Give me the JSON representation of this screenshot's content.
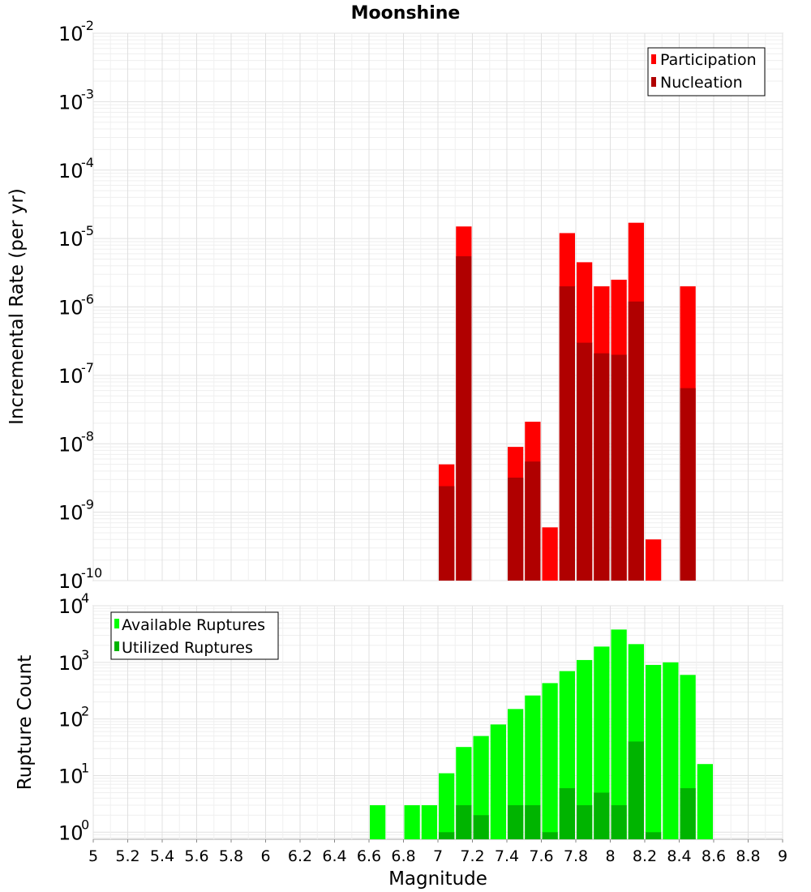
{
  "chart_data": [
    {
      "type": "bar",
      "title": "Moonshine",
      "xlabel": "",
      "ylabel": "Incremental Rate (per yr)",
      "y_scale": "log",
      "ylim": [
        1e-10,
        0.01
      ],
      "xlim": [
        5,
        9
      ],
      "y_tick_exponents": [
        "-10",
        "-9",
        "-8",
        "-7",
        "-6",
        "-5",
        "-4",
        "-3",
        "-2"
      ],
      "legend_position": "top-right",
      "x": [
        7.05,
        7.15,
        7.45,
        7.55,
        7.65,
        7.75,
        7.85,
        7.95,
        8.05,
        8.15,
        8.25,
        8.45
      ],
      "series": [
        {
          "name": "Participation",
          "color": "#ff0000",
          "values": [
            5e-09,
            1.5e-05,
            9e-09,
            2.1e-08,
            6e-10,
            1.2e-05,
            4.5e-06,
            2e-06,
            2.5e-06,
            1.7e-05,
            4e-10,
            2e-06
          ]
        },
        {
          "name": "Nucleation",
          "color": "#b00000",
          "values": [
            2.4e-09,
            5.5e-06,
            3.2e-09,
            5.5e-09,
            null,
            2e-06,
            3e-07,
            2.1e-07,
            2e-07,
            1.2e-06,
            null,
            6.5e-08
          ]
        }
      ],
      "grid": true
    },
    {
      "type": "bar",
      "title": "",
      "xlabel": "Magnitude",
      "ylabel": "Rupture Count",
      "y_scale": "log",
      "ylim": [
        0.75,
        10000
      ],
      "xlim": [
        5,
        9
      ],
      "x_ticks": [
        "5",
        "5.2",
        "5.4",
        "5.6",
        "5.8",
        "6",
        "6.2",
        "6.4",
        "6.6",
        "6.8",
        "7",
        "7.2",
        "7.4",
        "7.6",
        "7.8",
        "8",
        "8.2",
        "8.4",
        "8.6",
        "8.8",
        "9"
      ],
      "y_tick_exponents": [
        "0",
        "1",
        "2",
        "3",
        "4"
      ],
      "legend_position": "top-left",
      "x": [
        6.65,
        6.85,
        6.95,
        7.05,
        7.15,
        7.25,
        7.35,
        7.45,
        7.55,
        7.65,
        7.75,
        7.85,
        7.95,
        8.05,
        8.15,
        8.25,
        8.35,
        8.45,
        8.55
      ],
      "series": [
        {
          "name": "Available Ruptures",
          "color": "#00ff00",
          "values": [
            3,
            3,
            3,
            11,
            32,
            50,
            80,
            150,
            260,
            430,
            700,
            1100,
            1900,
            3800,
            2100,
            900,
            1000,
            600,
            16
          ]
        },
        {
          "name": "Utilized Ruptures",
          "color": "#00b400",
          "values": [
            null,
            null,
            null,
            1,
            3,
            2,
            null,
            3,
            3,
            1,
            6,
            3,
            5,
            3,
            40,
            1,
            null,
            6,
            null
          ]
        }
      ],
      "grid": true
    }
  ]
}
